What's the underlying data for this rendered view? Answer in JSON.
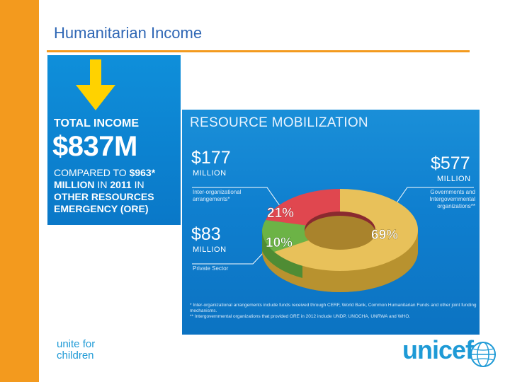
{
  "slide": {
    "title": "Humanitarian Income"
  },
  "total_income": {
    "label": "TOTAL INCOME",
    "amount": "$837M",
    "compare_prefix": "COMPARED TO ",
    "compare_value": "$963*",
    "compare_unit": "MILLION",
    "compare_mid": " IN ",
    "compare_year": "2011",
    "compare_in": " IN",
    "compare_line3": "OTHER RESOURCES",
    "compare_line4": "EMERGENCY (ORE)"
  },
  "resource_mobilization": {
    "title": "RESOURCE MOBILIZATION",
    "segments": [
      {
        "amount": "$177",
        "unit": "MILLION",
        "desc": "Inter-organizational arrangements*",
        "percent_label": "21%",
        "percent": 21,
        "color": "#e0474f"
      },
      {
        "amount": "$577",
        "unit": "MILLION",
        "desc": "Governments and Intergovernmental organizations**",
        "percent_label": "69%",
        "percent": 69,
        "color": "#e8c15a"
      },
      {
        "amount": "$83",
        "unit": "MILLION",
        "desc": "Private Sector",
        "percent_label": "10%",
        "percent": 10,
        "color": "#6cb346"
      }
    ],
    "footnote_1": "* Inter-organizational arrangements include funds received through CERF, World Bank, Common Humanitarian Funds and other joint funding mechanisms.",
    "footnote_2": "** Intergovernmental organizations that provided ORE in 2012 include UNDP, UNOCHA, UNRWA and WHO."
  },
  "footer": {
    "tagline_line1": "unite for",
    "tagline_line2": "children",
    "logo": "unicef"
  },
  "colors": {
    "accent_orange": "#f39a1e",
    "brand_blue": "#1e9ad6",
    "title_blue": "#2f67b5"
  }
}
